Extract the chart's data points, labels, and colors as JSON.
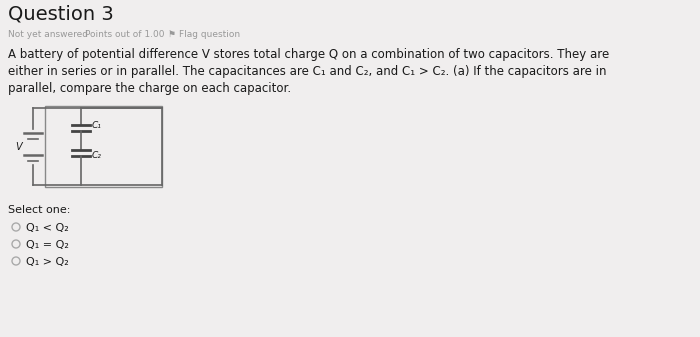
{
  "title": "Question 3",
  "subtitle1": "Not yet answered",
  "subtitle2": "Points out of 1.00",
  "subtitle3": "⚑ Flag question",
  "body_line1": "A battery of potential difference V stores total charge Q on a combination of two capacitors. They are",
  "body_line2": "either in series or in parallel. The capacitances are C₁ and C₂, and C₁ > C₂. (a) If the capacitors are in",
  "body_line3": "parallel, compare the charge on each capacitor.",
  "select_label": "Select one:",
  "options": [
    "Q₁ < Q₂",
    "Q₁ = Q₂",
    "Q₁ > Q₂"
  ],
  "bg_color": "#f0eeee",
  "text_color": "#333333",
  "title_color": "#1a1a1a",
  "subtitle_color": "#999999",
  "body_color": "#1a1a1a",
  "circuit_color": "#666666",
  "radio_color": "#aaaaaa"
}
